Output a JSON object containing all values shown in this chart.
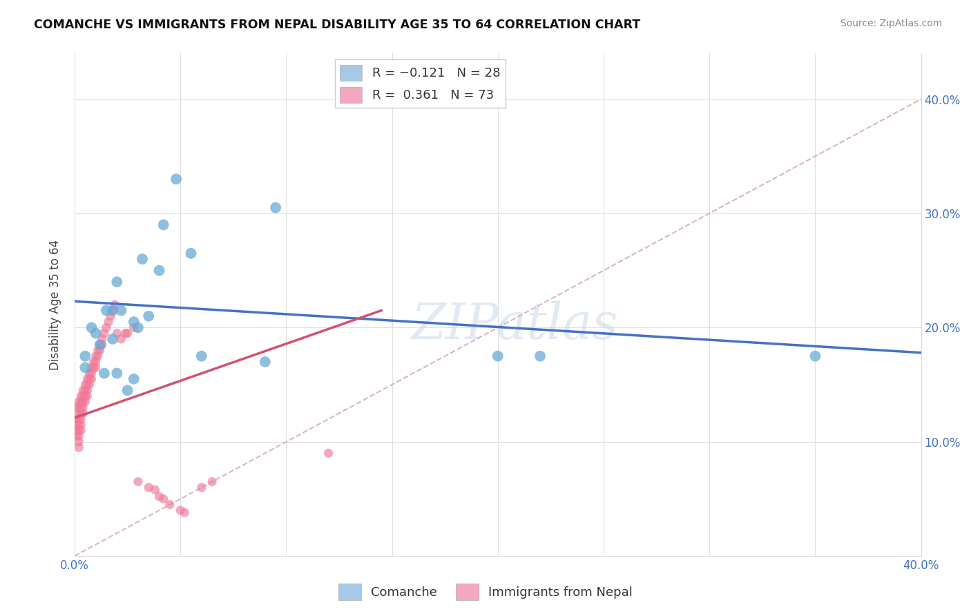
{
  "title": "COMANCHE VS IMMIGRANTS FROM NEPAL DISABILITY AGE 35 TO 64 CORRELATION CHART",
  "source": "Source: ZipAtlas.com",
  "ylabel": "Disability Age 35 to 64",
  "xlim": [
    0.0,
    0.4
  ],
  "ylim": [
    0.0,
    0.44
  ],
  "legend_color1": "#a8c8e8",
  "legend_color2": "#f4a8c0",
  "scatter_color1": "#6aaad4",
  "scatter_color2": "#f07898",
  "line_color1": "#4472c4",
  "line_color2": "#d45070",
  "diag_color": "#d4b0b8",
  "watermark": "ZIPatlas",
  "comanche_x": [
    0.005,
    0.005,
    0.008,
    0.01,
    0.012,
    0.014,
    0.015,
    0.018,
    0.018,
    0.02,
    0.02,
    0.022,
    0.025,
    0.028,
    0.028,
    0.03,
    0.032,
    0.035,
    0.04,
    0.042,
    0.048,
    0.055,
    0.06,
    0.09,
    0.095,
    0.2,
    0.22,
    0.35
  ],
  "comanche_y": [
    0.175,
    0.165,
    0.2,
    0.195,
    0.185,
    0.16,
    0.215,
    0.215,
    0.19,
    0.24,
    0.16,
    0.215,
    0.145,
    0.205,
    0.155,
    0.2,
    0.26,
    0.21,
    0.25,
    0.29,
    0.33,
    0.265,
    0.175,
    0.17,
    0.305,
    0.175,
    0.175,
    0.175
  ],
  "nepal_x": [
    0.001,
    0.001,
    0.001,
    0.001,
    0.001,
    0.002,
    0.002,
    0.002,
    0.002,
    0.002,
    0.002,
    0.002,
    0.002,
    0.002,
    0.003,
    0.003,
    0.003,
    0.003,
    0.003,
    0.003,
    0.003,
    0.004,
    0.004,
    0.004,
    0.004,
    0.004,
    0.005,
    0.005,
    0.005,
    0.005,
    0.006,
    0.006,
    0.006,
    0.006,
    0.007,
    0.007,
    0.007,
    0.008,
    0.008,
    0.008,
    0.009,
    0.009,
    0.01,
    0.01,
    0.01,
    0.011,
    0.011,
    0.012,
    0.012,
    0.013,
    0.013,
    0.014,
    0.015,
    0.016,
    0.017,
    0.018,
    0.019,
    0.02,
    0.022,
    0.024,
    0.025,
    0.028,
    0.03,
    0.035,
    0.038,
    0.04,
    0.042,
    0.045,
    0.05,
    0.052,
    0.06,
    0.065,
    0.12
  ],
  "nepal_y": [
    0.13,
    0.12,
    0.115,
    0.11,
    0.105,
    0.135,
    0.13,
    0.125,
    0.12,
    0.115,
    0.11,
    0.105,
    0.1,
    0.095,
    0.14,
    0.135,
    0.13,
    0.125,
    0.12,
    0.115,
    0.11,
    0.145,
    0.14,
    0.135,
    0.13,
    0.125,
    0.15,
    0.145,
    0.14,
    0.135,
    0.155,
    0.15,
    0.145,
    0.14,
    0.16,
    0.155,
    0.15,
    0.165,
    0.16,
    0.155,
    0.17,
    0.165,
    0.175,
    0.17,
    0.165,
    0.18,
    0.175,
    0.185,
    0.18,
    0.19,
    0.185,
    0.195,
    0.2,
    0.205,
    0.21,
    0.215,
    0.22,
    0.195,
    0.19,
    0.195,
    0.195,
    0.2,
    0.065,
    0.06,
    0.058,
    0.052,
    0.05,
    0.045,
    0.04,
    0.038,
    0.06,
    0.065,
    0.09
  ],
  "blue_line_x": [
    0.0,
    0.4
  ],
  "blue_line_y": [
    0.223,
    0.178
  ],
  "pink_line_x": [
    0.0,
    0.145
  ],
  "pink_line_y": [
    0.121,
    0.215
  ],
  "diag_line_x": [
    0.0,
    0.4
  ],
  "diag_line_y": [
    0.0,
    0.4
  ]
}
